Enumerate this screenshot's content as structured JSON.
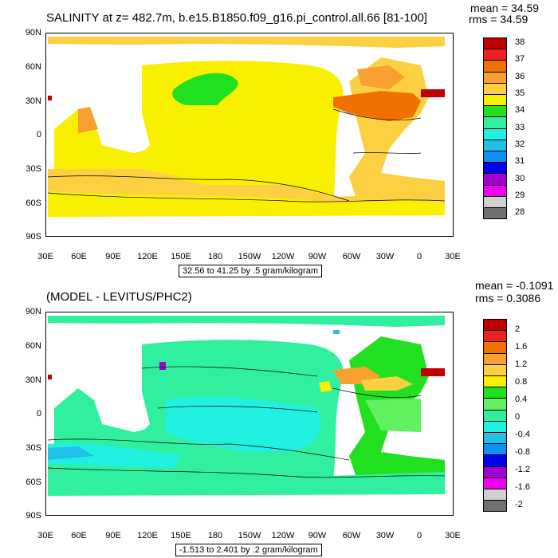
{
  "top_panel": {
    "title": "SALINITY at z= 482.7m, b.e15.B1850.f09_g16.pi_control.all.66 [81-100]",
    "mean_text": "mean = 34.59",
    "rms_text": "rms = 34.59",
    "range_text": "32.56 to 41.25 by .5 gram/kilogram",
    "colorbar_labels": [
      "38",
      "37",
      "36",
      "35",
      "34",
      "33",
      "32",
      "31",
      "30",
      "29",
      "28"
    ],
    "colorbar_colors": [
      "#c00000",
      "#ee2020",
      "#f07000",
      "#f8a030",
      "#fcd040",
      "#f8f000",
      "#20e020",
      "#30f0a0",
      "#20f0e0",
      "#20c0e8",
      "#1090f0",
      "#0000f0",
      "#a000d0",
      "#f000f0",
      "#d0d0d0",
      "#707070"
    ]
  },
  "bottom_panel": {
    "title": "(MODEL - LEVITUS/PHC2)",
    "mean_text": "mean = -0.1091",
    "rms_text": "rms = 0.3086",
    "range_text": "-1.513 to 2.401 by .2 gram/kilogram",
    "colorbar_labels": [
      "2",
      "1.6",
      "1.2",
      "0.8",
      "0.4",
      "0",
      "-0.4",
      "-0.8",
      "-1.2",
      "-1.6",
      "-2"
    ],
    "colorbar_colors": [
      "#c00000",
      "#ee2020",
      "#f07000",
      "#f8a030",
      "#fcd040",
      "#f8f000",
      "#20e020",
      "#60f060",
      "#30f0a0",
      "#20f0e0",
      "#20c0e8",
      "#1090f0",
      "#0000f0",
      "#a000d0",
      "#f000f0",
      "#d0d0d0",
      "#707070"
    ]
  },
  "axes": {
    "y_ticks": [
      "90N",
      "60N",
      "30N",
      "0",
      "30S",
      "60S",
      "90S"
    ],
    "x_ticks": [
      "30E",
      "60E",
      "90E",
      "120E",
      "150E",
      "180",
      "150W",
      "120W",
      "90W",
      "60W",
      "30W",
      "0",
      "30E"
    ]
  },
  "colors": {
    "top_ocean": "#f8f000",
    "top_band": "#fcd040",
    "top_green": "#20e020",
    "top_orange": "#f07000",
    "bottom_ocean": "#30f0a0",
    "bottom_teal": "#20f0e0",
    "bottom_green": "#20e020",
    "land": "#ffffff"
  }
}
